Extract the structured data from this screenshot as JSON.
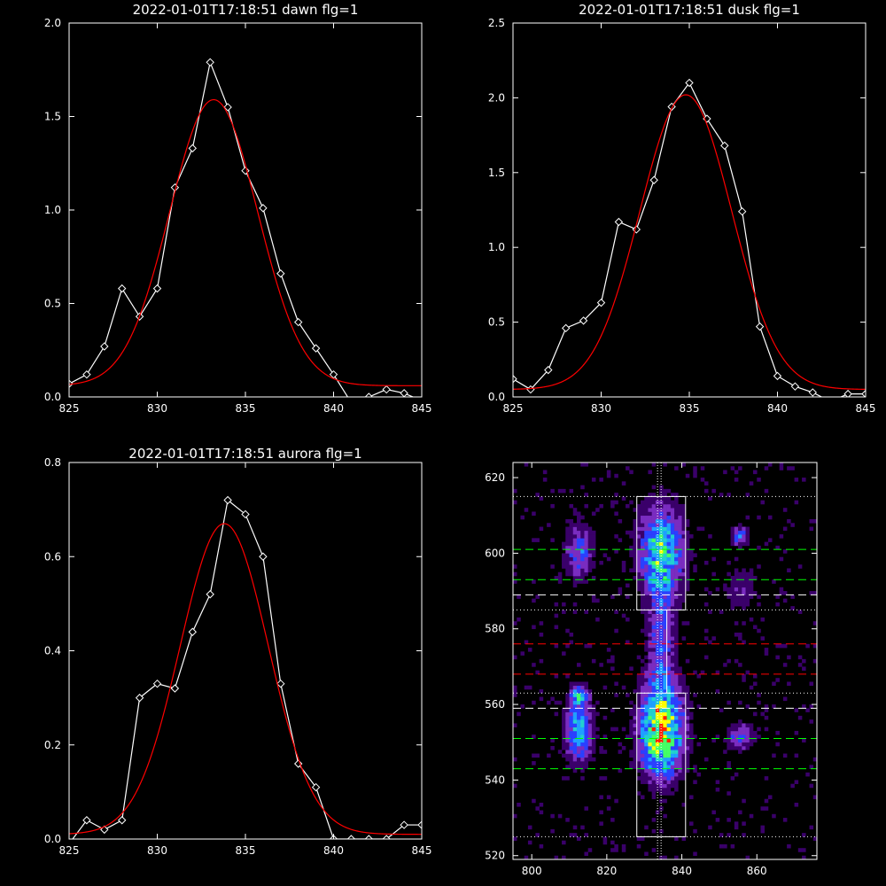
{
  "chart_data": [
    {
      "type": "line",
      "title": "2022-01-01T17:18:51 dawn flg=1",
      "xlim": [
        825,
        845
      ],
      "ylim": [
        0,
        2.0
      ],
      "xticks": [
        "825",
        "830",
        "835",
        "840",
        "845"
      ],
      "yticks": [
        "0.0",
        "0.5",
        "1.0",
        "1.5",
        "2.0"
      ],
      "series": [
        {
          "color": "#ffffff",
          "marker": "diamond",
          "x": [
            825,
            826,
            827,
            828,
            829,
            830,
            831,
            832,
            833,
            834,
            835,
            836,
            837,
            838,
            839,
            840,
            841,
            842,
            843,
            844,
            845
          ],
          "y": [
            0.07,
            0.12,
            0.27,
            0.58,
            0.43,
            0.58,
            1.12,
            1.33,
            1.79,
            1.55,
            1.21,
            1.01,
            0.66,
            0.4,
            0.26,
            0.12,
            -0.03,
            0.0,
            0.04,
            0.02,
            -0.02
          ]
        },
        {
          "color": "#ff0000",
          "curve": "gaussian",
          "amplitude": 1.53,
          "center": 833.2,
          "sigma": 2.5,
          "offset": 0.06
        }
      ]
    },
    {
      "type": "line",
      "title": "2022-01-01T17:18:51 dusk flg=1",
      "xlim": [
        825,
        845
      ],
      "ylim": [
        0,
        2.5
      ],
      "xticks": [
        "825",
        "830",
        "835",
        "840",
        "845"
      ],
      "yticks": [
        "0.0",
        "0.5",
        "1.0",
        "1.5",
        "2.0",
        "2.5"
      ],
      "series": [
        {
          "color": "#ffffff",
          "marker": "diamond",
          "x": [
            825,
            826,
            827,
            828,
            829,
            830,
            831,
            832,
            833,
            834,
            835,
            836,
            837,
            838,
            839,
            840,
            841,
            842,
            843,
            844,
            845
          ],
          "y": [
            0.12,
            0.05,
            0.18,
            0.46,
            0.51,
            0.63,
            1.17,
            1.12,
            1.45,
            1.94,
            2.1,
            1.86,
            1.68,
            1.24,
            0.47,
            0.14,
            0.07,
            0.03,
            -0.03,
            0.02,
            0.02
          ]
        },
        {
          "color": "#ff0000",
          "curve": "gaussian",
          "amplitude": 1.97,
          "center": 834.8,
          "sigma": 2.6,
          "offset": 0.05
        }
      ]
    },
    {
      "type": "line",
      "title": "2022-01-01T17:18:51 aurora flg=1",
      "xlim": [
        825,
        845
      ],
      "ylim": [
        0,
        0.8
      ],
      "xticks": [
        "825",
        "830",
        "835",
        "840",
        "845"
      ],
      "yticks": [
        "0.0",
        "0.2",
        "0.4",
        "0.6",
        "0.8"
      ],
      "series": [
        {
          "color": "#ffffff",
          "marker": "diamond",
          "x": [
            825,
            826,
            827,
            828,
            829,
            830,
            831,
            832,
            833,
            834,
            835,
            836,
            837,
            838,
            839,
            840,
            841,
            842,
            843,
            844,
            845
          ],
          "y": [
            -0.01,
            0.04,
            0.02,
            0.04,
            0.3,
            0.33,
            0.32,
            0.44,
            0.52,
            0.72,
            0.69,
            0.6,
            0.33,
            0.16,
            0.11,
            0.0,
            0.0,
            0.0,
            0.0,
            0.03,
            0.03
          ]
        },
        {
          "color": "#ff0000",
          "curve": "gaussian",
          "amplitude": 0.66,
          "center": 833.8,
          "sigma": 2.5,
          "offset": 0.01
        }
      ]
    },
    {
      "type": "heatmap",
      "title": "",
      "xlim": [
        795,
        876
      ],
      "ylim": [
        519,
        624
      ],
      "xticks": [
        "800",
        "820",
        "840",
        "860"
      ],
      "yticks": [
        "520",
        "540",
        "560",
        "580",
        "600",
        "620"
      ],
      "colormap": [
        "#000000",
        "#3a006a",
        "#7a2cc0",
        "#2a40ff",
        "#1fa0ff",
        "#22d0d0",
        "#44ff66",
        "#ffff00",
        "#ff2000"
      ],
      "hotspots": [
        {
          "x": 812,
          "y": 600,
          "spread": [
            2.5,
            5.0
          ],
          "peak": 0.45
        },
        {
          "x": 812,
          "y": 553,
          "spread": [
            2.5,
            6.0
          ],
          "peak": 0.6
        },
        {
          "x": 812,
          "y": 562,
          "spread": [
            1.5,
            1.5
          ],
          "peak": 0.55
        },
        {
          "x": 834,
          "y": 600,
          "spread": [
            4.0,
            8.0
          ],
          "peak": 0.75
        },
        {
          "x": 834,
          "y": 552,
          "spread": [
            4.0,
            8.0
          ],
          "peak": 1.0
        },
        {
          "x": 834,
          "y": 575,
          "spread": [
            2.5,
            12.0
          ],
          "peak": 0.4
        },
        {
          "x": 855,
          "y": 551,
          "spread": [
            2.5,
            2.5
          ],
          "peak": 0.4
        },
        {
          "x": 855,
          "y": 604,
          "spread": [
            1.5,
            2.0
          ],
          "peak": 0.45
        },
        {
          "x": 855,
          "y": 590,
          "spread": [
            3.0,
            4.0
          ],
          "peak": 0.22
        }
      ],
      "boxes": [
        {
          "x": [
            828,
            841
          ],
          "y": [
            585,
            615
          ]
        },
        {
          "x": [
            828,
            841
          ],
          "y": [
            525,
            563
          ]
        }
      ],
      "vertical_line": {
        "x": 834,
        "color": "#ffffff"
      },
      "horizontal_lines": [
        {
          "y": 615,
          "color": "#ffffff",
          "style": "dotted"
        },
        {
          "y": 601,
          "color": "#00ff00",
          "style": "dashed"
        },
        {
          "y": 593,
          "color": "#00ff00",
          "style": "dashed"
        },
        {
          "y": 589,
          "color": "#ffffff",
          "style": "dashed"
        },
        {
          "y": 585,
          "color": "#ffffff",
          "style": "dotted"
        },
        {
          "y": 576,
          "color": "#ff0000",
          "style": "dashed"
        },
        {
          "y": 568,
          "color": "#ff0000",
          "style": "dashed"
        },
        {
          "y": 563,
          "color": "#ffffff",
          "style": "dotted"
        },
        {
          "y": 559,
          "color": "#ffffff",
          "style": "dashed"
        },
        {
          "y": 551,
          "color": "#00ff00",
          "style": "dashed"
        },
        {
          "y": 543,
          "color": "#00ff00",
          "style": "dashed"
        },
        {
          "y": 525,
          "color": "#ffffff",
          "style": "dotted"
        }
      ]
    }
  ]
}
